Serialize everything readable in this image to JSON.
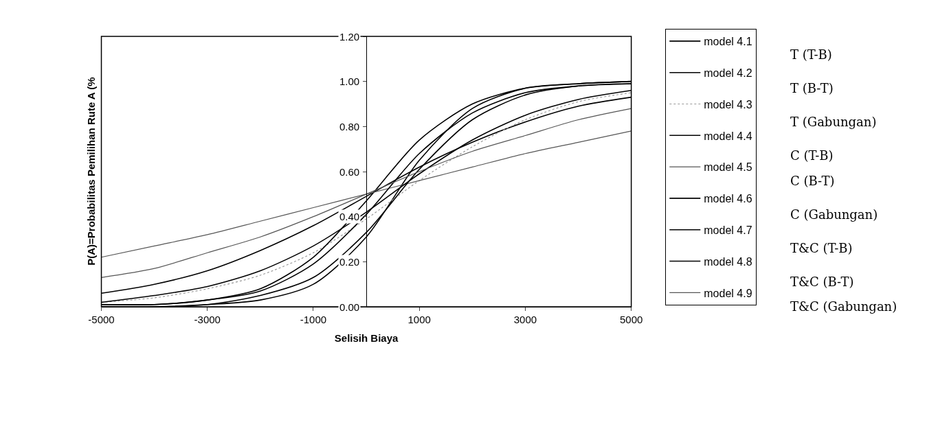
{
  "chart_data": {
    "type": "line",
    "xlabel": "Selisih Biaya",
    "ylabel": "P(A)=Probabilitas Pemilihan Rute A (%",
    "x": [
      -5000,
      -4000,
      -3000,
      -2000,
      -1000,
      0,
      1000,
      2000,
      3000,
      4000,
      5000
    ],
    "xlim": [
      -5000,
      5000
    ],
    "xticks": [
      -5000,
      -3000,
      -1000,
      1000,
      3000,
      5000
    ],
    "ylim": [
      0,
      1.2
    ],
    "yticks": [
      {
        "value": 0,
        "label": "0.00"
      },
      {
        "value": 0.2,
        "label": "0.20"
      },
      {
        "value": 0.4,
        "label": "0.40"
      },
      {
        "value": 0.6,
        "label": "0.60"
      },
      {
        "value": 0.8,
        "label": "0.80"
      },
      {
        "value": 1.0,
        "label": "1.00"
      },
      {
        "value": 1.2,
        "label": "1.20"
      }
    ],
    "grid": false,
    "legend": "right",
    "marker": "none",
    "series": [
      {
        "name": "model 4.1",
        "color": "#000000",
        "line_style": "solid",
        "values": [
          0.0,
          0.0,
          0.01,
          0.03,
          0.1,
          0.31,
          0.65,
          0.88,
          0.97,
          0.99,
          1.0
        ]
      },
      {
        "name": "model 4.2",
        "color": "#000000",
        "line_style": "solid",
        "values": [
          0.06,
          0.1,
          0.16,
          0.25,
          0.36,
          0.49,
          0.62,
          0.73,
          0.82,
          0.89,
          0.93
        ]
      },
      {
        "name": "model 4.3",
        "color": "#999999",
        "line_style": "dotted",
        "values": [
          0.02,
          0.04,
          0.08,
          0.14,
          0.24,
          0.39,
          0.56,
          0.71,
          0.83,
          0.91,
          0.95
        ]
      },
      {
        "name": "model 4.4",
        "color": "#000000",
        "line_style": "solid",
        "values": [
          0.01,
          0.01,
          0.03,
          0.08,
          0.22,
          0.47,
          0.74,
          0.9,
          0.97,
          0.99,
          1.0
        ]
      },
      {
        "name": "model 4.5",
        "color": "#555555",
        "line_style": "solid",
        "values": [
          0.22,
          0.27,
          0.32,
          0.38,
          0.44,
          0.5,
          0.56,
          0.62,
          0.68,
          0.73,
          0.78
        ]
      },
      {
        "name": "model 4.6",
        "color": "#000000",
        "line_style": "solid",
        "values": [
          0.0,
          0.0,
          0.01,
          0.05,
          0.13,
          0.33,
          0.61,
          0.83,
          0.94,
          0.98,
          0.99
        ]
      },
      {
        "name": "model 4.7",
        "color": "#000000",
        "line_style": "solid",
        "values": [
          0.01,
          0.01,
          0.03,
          0.07,
          0.19,
          0.41,
          0.68,
          0.86,
          0.95,
          0.98,
          0.99
        ]
      },
      {
        "name": "model 4.8",
        "color": "#000000",
        "line_style": "solid",
        "values": [
          0.02,
          0.05,
          0.09,
          0.16,
          0.27,
          0.42,
          0.59,
          0.74,
          0.85,
          0.92,
          0.96
        ]
      },
      {
        "name": "model 4.9",
        "color": "#555555",
        "line_style": "solid",
        "values": [
          0.13,
          0.17,
          0.24,
          0.31,
          0.4,
          0.5,
          0.6,
          0.69,
          0.76,
          0.83,
          0.88
        ]
      }
    ],
    "annotations": [
      "T (T-B)",
      "T (B-T)",
      "T (Gabungan)",
      "C (T-B)",
      "C (B-T)",
      "C (Gabungan)",
      "T&C (T-B)",
      "T&C (B-T)",
      "T&C (Gabungan)"
    ]
  }
}
